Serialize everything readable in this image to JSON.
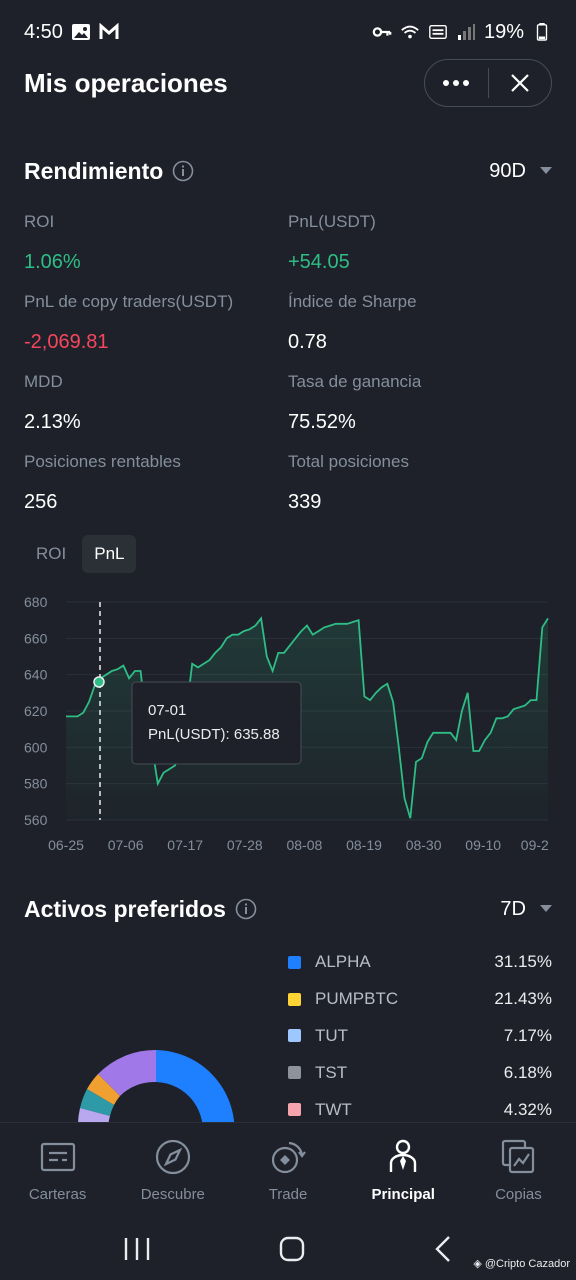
{
  "status": {
    "time": "4:50",
    "battery": "19%"
  },
  "header": {
    "title": "Mis operaciones"
  },
  "performance": {
    "title": "Rendimiento",
    "period": "90D",
    "metrics": [
      {
        "label": "ROI",
        "value": "1.06%",
        "tone": "green"
      },
      {
        "label": "PnL(USDT)",
        "value": "+54.05",
        "tone": "green"
      },
      {
        "label": "PnL de copy traders(USDT)",
        "value": "-2,069.81",
        "tone": "red"
      },
      {
        "label": "Índice de Sharpe",
        "value": "0.78",
        "tone": "white"
      },
      {
        "label": "MDD",
        "value": "2.13%",
        "tone": "white"
      },
      {
        "label": "Tasa de ganancia",
        "value": "75.52%",
        "tone": "white"
      },
      {
        "label": "Posiciones rentables",
        "value": "256",
        "tone": "white"
      },
      {
        "label": "Total posiciones",
        "value": "339",
        "tone": "white"
      }
    ]
  },
  "chart_tabs": {
    "roi": "ROI",
    "pnl": "PnL"
  },
  "chart_data": {
    "type": "line",
    "ylim": [
      560,
      680
    ],
    "yticks": [
      680,
      660,
      640,
      620,
      600,
      580,
      560
    ],
    "xticks": [
      "06-25",
      "07-06",
      "07-17",
      "07-28",
      "08-08",
      "08-19",
      "08-30",
      "09-10",
      "09-2"
    ],
    "series": [
      {
        "values": [
          617,
          617,
          617,
          619,
          625,
          634,
          638,
          640,
          642,
          643,
          645,
          638,
          642,
          642,
          613,
          600,
          580,
          586,
          588,
          590,
          598,
          620,
          646,
          644,
          646,
          648,
          652,
          655,
          660,
          662,
          662,
          664,
          665,
          667,
          671,
          650,
          642,
          652,
          652,
          656,
          660,
          664,
          667,
          662,
          664,
          666,
          667,
          668,
          668,
          668,
          669,
          670,
          628,
          626,
          630,
          633,
          635,
          625,
          600,
          572,
          561,
          592,
          594,
          603,
          608,
          608,
          608,
          608,
          604,
          620,
          630,
          598,
          598,
          604,
          608,
          616,
          616,
          617,
          621,
          622,
          623,
          626,
          626,
          666,
          671
        ]
      }
    ],
    "tooltip": {
      "date": "07-01",
      "text": "PnL(USDT): 635.88"
    }
  },
  "assets": {
    "title": "Activos preferidos",
    "period": "7D",
    "items": [
      {
        "name": "ALPHA",
        "pct": "31.15%",
        "color": "#1e80ff"
      },
      {
        "name": "PUMPBTC",
        "pct": "21.43%",
        "color": "#fcd535"
      },
      {
        "name": "TUT",
        "pct": "7.17%",
        "color": "#9fc7ff"
      },
      {
        "name": "TST",
        "pct": "6.18%",
        "color": "#8d929c"
      },
      {
        "name": "TWT",
        "pct": "4.32%",
        "color": "#f5a3ad"
      }
    ]
  },
  "nav": [
    {
      "label": "Carteras",
      "icon": "wallet-icon"
    },
    {
      "label": "Descubre",
      "icon": "compass-icon"
    },
    {
      "label": "Trade",
      "icon": "trade-icon"
    },
    {
      "label": "Principal",
      "icon": "person-icon"
    },
    {
      "label": "Copias",
      "icon": "copy-chart-icon"
    }
  ],
  "watermark": "@Cripto Cazador"
}
